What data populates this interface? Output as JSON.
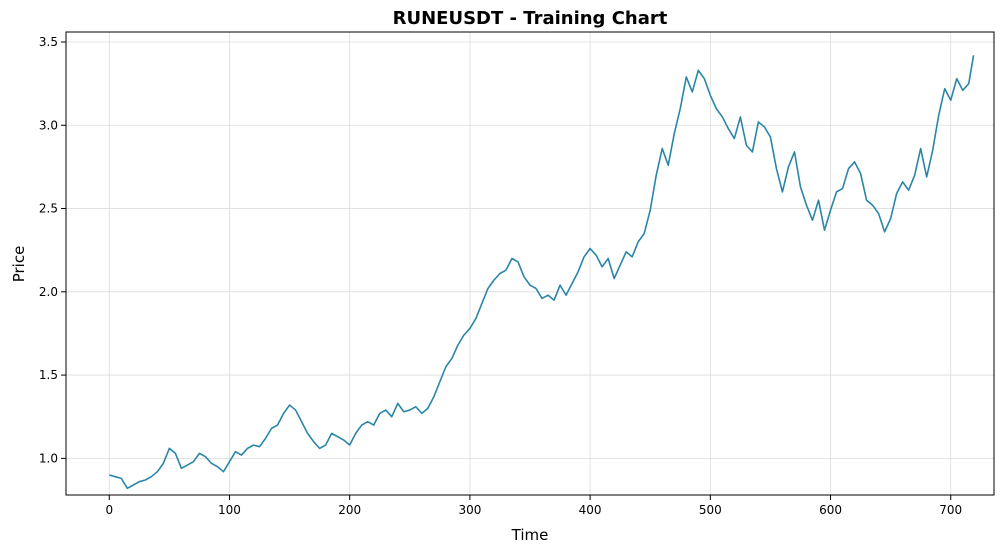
{
  "chart_data": {
    "type": "line",
    "title": "RUNEUSDT - Training Chart",
    "xlabel": "Time",
    "ylabel": "Price",
    "xlim": [
      -36,
      736
    ],
    "ylim": [
      0.78,
      3.56
    ],
    "xticks": [
      0,
      100,
      200,
      300,
      400,
      500,
      600,
      700
    ],
    "yticks": [
      1.0,
      1.5,
      2.0,
      2.5,
      3.0,
      3.5
    ],
    "ytick_labels": [
      "1.0",
      "1.5",
      "2.0",
      "2.5",
      "3.0",
      "3.5"
    ],
    "grid": true,
    "line_color": "#2a86a8",
    "series": [
      {
        "x": [
          0,
          5,
          10,
          15,
          20,
          25,
          30,
          35,
          40,
          45,
          50,
          55,
          60,
          65,
          70,
          75,
          80,
          85,
          90,
          95,
          100,
          105,
          110,
          115,
          120,
          125,
          130,
          135,
          140,
          145,
          150,
          155,
          160,
          165,
          170,
          175,
          180,
          185,
          190,
          195,
          200,
          205,
          210,
          215,
          220,
          225,
          230,
          235,
          240,
          245,
          250,
          255,
          260,
          265,
          270,
          275,
          280,
          285,
          290,
          295,
          300,
          305,
          310,
          315,
          320,
          325,
          330,
          335,
          340,
          345,
          350,
          355,
          360,
          365,
          370,
          375,
          380,
          385,
          390,
          395,
          400,
          405,
          410,
          415,
          420,
          425,
          430,
          435,
          440,
          445,
          450,
          455,
          460,
          465,
          470,
          475,
          480,
          485,
          490,
          495,
          500,
          505,
          510,
          515,
          520,
          525,
          530,
          535,
          540,
          545,
          550,
          555,
          560,
          565,
          570,
          575,
          580,
          585,
          590,
          595,
          600,
          605,
          610,
          615,
          620,
          625,
          630,
          635,
          640,
          645,
          650,
          655,
          660,
          665,
          670,
          675,
          680,
          685,
          690,
          695,
          700,
          705,
          710,
          715,
          719
        ],
        "y": [
          0.9,
          0.89,
          0.88,
          0.82,
          0.84,
          0.86,
          0.87,
          0.89,
          0.92,
          0.97,
          1.06,
          1.03,
          0.94,
          0.96,
          0.98,
          1.03,
          1.01,
          0.97,
          0.95,
          0.92,
          0.98,
          1.04,
          1.02,
          1.06,
          1.08,
          1.07,
          1.12,
          1.18,
          1.2,
          1.27,
          1.32,
          1.29,
          1.22,
          1.15,
          1.1,
          1.06,
          1.08,
          1.15,
          1.13,
          1.11,
          1.08,
          1.15,
          1.2,
          1.22,
          1.2,
          1.27,
          1.29,
          1.25,
          1.33,
          1.28,
          1.29,
          1.31,
          1.27,
          1.3,
          1.37,
          1.46,
          1.55,
          1.6,
          1.68,
          1.74,
          1.78,
          1.84,
          1.93,
          2.02,
          2.07,
          2.11,
          2.13,
          2.2,
          2.18,
          2.09,
          2.04,
          2.02,
          1.96,
          1.98,
          1.95,
          2.04,
          1.98,
          2.05,
          2.12,
          2.21,
          2.26,
          2.22,
          2.15,
          2.2,
          2.08,
          2.16,
          2.24,
          2.21,
          2.3,
          2.35,
          2.49,
          2.7,
          2.86,
          2.76,
          2.95,
          3.1,
          3.29,
          3.2,
          3.33,
          3.28,
          3.18,
          3.1,
          3.05,
          2.98,
          2.92,
          3.05,
          2.88,
          2.84,
          3.02,
          2.99,
          2.93,
          2.74,
          2.6,
          2.75,
          2.84,
          2.63,
          2.52,
          2.43,
          2.55,
          2.37,
          2.49,
          2.6,
          2.62,
          2.74,
          2.78,
          2.71,
          2.55,
          2.52,
          2.47,
          2.36,
          2.44,
          2.59,
          2.66,
          2.61,
          2.7,
          2.86,
          2.69,
          2.85,
          3.06,
          3.22,
          3.15,
          3.28,
          3.21,
          3.25,
          3.42
        ]
      }
    ]
  }
}
